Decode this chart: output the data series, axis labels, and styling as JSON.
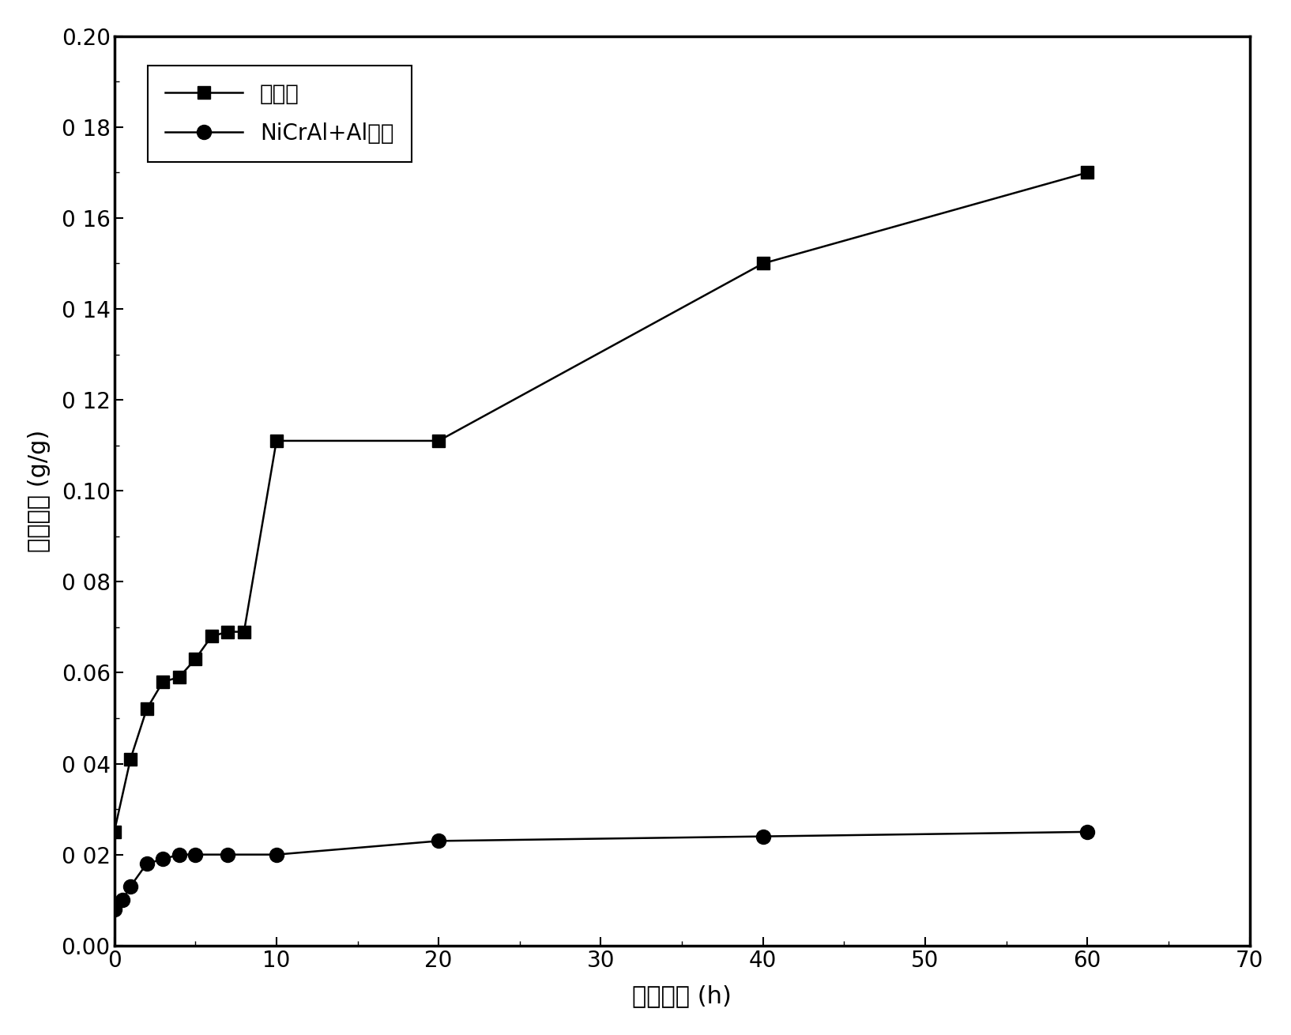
{
  "series1_label": "泡沫镍",
  "series2_label": "NiCrAl+Al涂层",
  "series1_x": [
    0,
    1,
    2,
    3,
    4,
    5,
    6,
    7,
    8,
    10,
    20,
    40,
    60
  ],
  "series1_y": [
    0.025,
    0.041,
    0.052,
    0.058,
    0.059,
    0.063,
    0.068,
    0.069,
    0.069,
    0.111,
    0.111,
    0.15,
    0.17
  ],
  "series2_x": [
    0,
    0.5,
    1,
    2,
    3,
    4,
    5,
    7,
    10,
    20,
    40,
    60
  ],
  "series2_y": [
    0.008,
    0.01,
    0.013,
    0.018,
    0.019,
    0.02,
    0.02,
    0.02,
    0.02,
    0.023,
    0.024,
    0.025
  ],
  "xlabel": "氧化时间 (h)",
  "ylabel": "氧化增重 (g/g)",
  "xlim": [
    0,
    70
  ],
  "ylim": [
    0.0,
    0.2
  ],
  "xticks": [
    0,
    10,
    20,
    30,
    40,
    50,
    60,
    70
  ],
  "ytick_values": [
    0.0,
    0.02,
    0.04,
    0.06,
    0.08,
    0.1,
    0.12,
    0.14,
    0.16,
    0.18,
    0.2
  ],
  "ytick_labels": [
    "0.00",
    "0 02",
    "0 04",
    "0.06",
    "0 08",
    "0.10",
    "0 12",
    "0 14",
    "0 16",
    "0 18",
    "0.20"
  ],
  "line_color": "#000000",
  "marker_size_sq": 11,
  "marker_size_ci": 13,
  "linewidth": 1.8,
  "legend_fontsize": 20,
  "axis_fontsize": 22,
  "tick_fontsize": 20
}
